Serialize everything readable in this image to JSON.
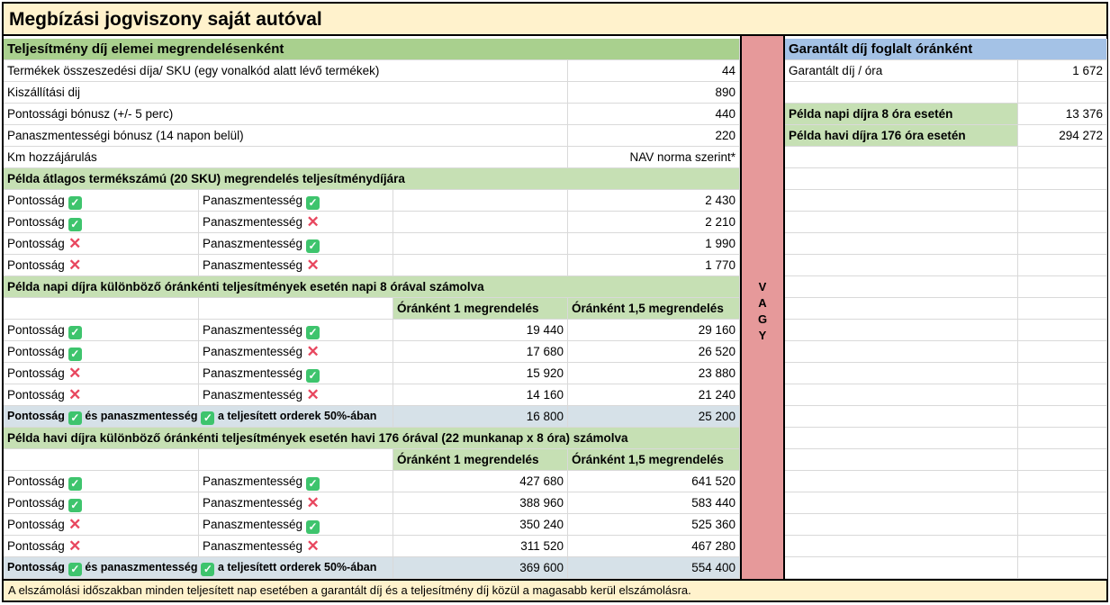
{
  "title": "Megbízási jogviszony saját autóval",
  "vagy": "VAGY",
  "footer": "A elszámolási időszakban minden teljesített nap esetében a garantált díj és a teljesítmény díj közül a magasabb kerül elszámolásra.",
  "labels": {
    "pont": "Pontosság",
    "pan": "Panaszmentesség"
  },
  "colors": {
    "title_bg": "#fff2cc",
    "section_green": "#a9d08e",
    "sub_green": "#c6e0b4",
    "summary_bg": "#d6e1e8",
    "vagy_red": "#e6999a",
    "right_header_blue": "#a4c2e6",
    "check_green": "#3ec46d",
    "cross_red": "#e8475f"
  },
  "fee_elements": {
    "header": "Teljesítmény díj elemei megrendelésenként",
    "items": [
      {
        "label": "Termékek összeszedési díja/ SKU (egy vonalkód alatt lévő termékek)",
        "value": "44"
      },
      {
        "label": "Kiszállítási dij",
        "value": "890"
      },
      {
        "label": "Pontossági bónusz (+/- 5 perc)",
        "value": "440"
      },
      {
        "label": "Panaszmentességi bónusz (14 napon belül)",
        "value": "220"
      },
      {
        "label": "Km hozzájárulás",
        "value": "NAV norma szerint*"
      }
    ]
  },
  "example_order": {
    "header": "Példa átlagos termékszámú (20 SKU) megrendelés teljesítménydíjára",
    "rows": [
      {
        "pont": true,
        "pan": true,
        "value": "2 430"
      },
      {
        "pont": true,
        "pan": false,
        "value": "2 210"
      },
      {
        "pont": false,
        "pan": true,
        "value": "1 990"
      },
      {
        "pont": false,
        "pan": false,
        "value": "1 770"
      }
    ]
  },
  "daily": {
    "header": "Példa napi díjra különböző óránkénti teljesítmények esetén napi 8 órával számolva",
    "col1": "Óránként 1 megrendelés",
    "col2": "Óránként 1,5 megrendelés",
    "rows": [
      {
        "pont": true,
        "pan": true,
        "v1": "19 440",
        "v2": "29 160"
      },
      {
        "pont": true,
        "pan": false,
        "v1": "17 680",
        "v2": "26 520"
      },
      {
        "pont": false,
        "pan": true,
        "v1": "15 920",
        "v2": "23 880"
      },
      {
        "pont": false,
        "pan": false,
        "v1": "14 160",
        "v2": "21 240"
      }
    ],
    "summary": {
      "a": "Pontosság",
      "b": "és panaszmentesség",
      "c": "a teljesített orderek 50%-ában",
      "v1": "16 800",
      "v2": "25 200"
    }
  },
  "monthly": {
    "header": "Példa havi díjra különböző óránkénti teljesítmények esetén havi 176 órával (22 munkanap x 8 óra) számolva",
    "col1": "Óránként 1 megrendelés",
    "col2": "Óránként 1,5 megrendelés",
    "rows": [
      {
        "pont": true,
        "pan": true,
        "v1": "427 680",
        "v2": "641 520"
      },
      {
        "pont": true,
        "pan": false,
        "v1": "388 960",
        "v2": "583 440"
      },
      {
        "pont": false,
        "pan": true,
        "v1": "350 240",
        "v2": "525 360"
      },
      {
        "pont": false,
        "pan": false,
        "v1": "311 520",
        "v2": "467 280"
      }
    ],
    "summary": {
      "a": "Pontosság",
      "b": "és panaszmentesség",
      "c": "a teljesített orderek 50%-ában",
      "v1": "369 600",
      "v2": "554 400"
    }
  },
  "guaranteed": {
    "header": "Garantált díj foglalt óránként",
    "rate_label": "Garantált díj / óra",
    "rate_value": "1 672",
    "daily_label": "Példa napi díjra 8 óra esetén",
    "daily_value": "13 376",
    "monthly_label": "Példa havi díjra 176 óra esetén",
    "monthly_value": "294 272"
  }
}
